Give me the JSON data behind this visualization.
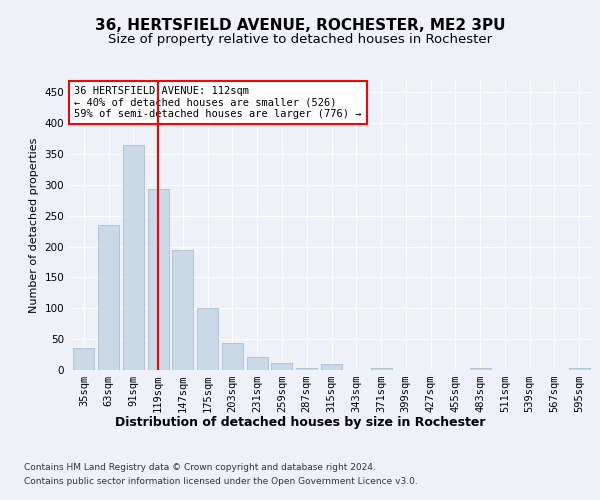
{
  "title1": "36, HERTSFIELD AVENUE, ROCHESTER, ME2 3PU",
  "title2": "Size of property relative to detached houses in Rochester",
  "xlabel": "Distribution of detached houses by size in Rochester",
  "ylabel": "Number of detached properties",
  "categories": [
    "35sqm",
    "63sqm",
    "91sqm",
    "119sqm",
    "147sqm",
    "175sqm",
    "203sqm",
    "231sqm",
    "259sqm",
    "287sqm",
    "315sqm",
    "343sqm",
    "371sqm",
    "399sqm",
    "427sqm",
    "455sqm",
    "483sqm",
    "511sqm",
    "539sqm",
    "567sqm",
    "595sqm"
  ],
  "values": [
    35,
    235,
    365,
    293,
    194,
    101,
    43,
    21,
    11,
    4,
    9,
    0,
    4,
    0,
    0,
    0,
    4,
    0,
    0,
    0,
    4
  ],
  "bar_color": "#c9d9e8",
  "bar_edge_color": "#a0b8cc",
  "vline_x": 3,
  "vline_color": "red",
  "annotation_text": "36 HERTSFIELD AVENUE: 112sqm\n← 40% of detached houses are smaller (526)\n59% of semi-detached houses are larger (776) →",
  "annotation_box_color": "white",
  "annotation_box_edge_color": "red",
  "ylim": [
    0,
    470
  ],
  "yticks": [
    0,
    50,
    100,
    150,
    200,
    250,
    300,
    350,
    400,
    450
  ],
  "bg_color": "#eef2f8",
  "plot_bg_color": "#eef2f8",
  "grid_color": "white",
  "footer1": "Contains HM Land Registry data © Crown copyright and database right 2024.",
  "footer2": "Contains public sector information licensed under the Open Government Licence v3.0.",
  "title1_fontsize": 11,
  "title2_fontsize": 9.5,
  "xlabel_fontsize": 9,
  "ylabel_fontsize": 8,
  "tick_fontsize": 7.5,
  "footer_fontsize": 6.5
}
